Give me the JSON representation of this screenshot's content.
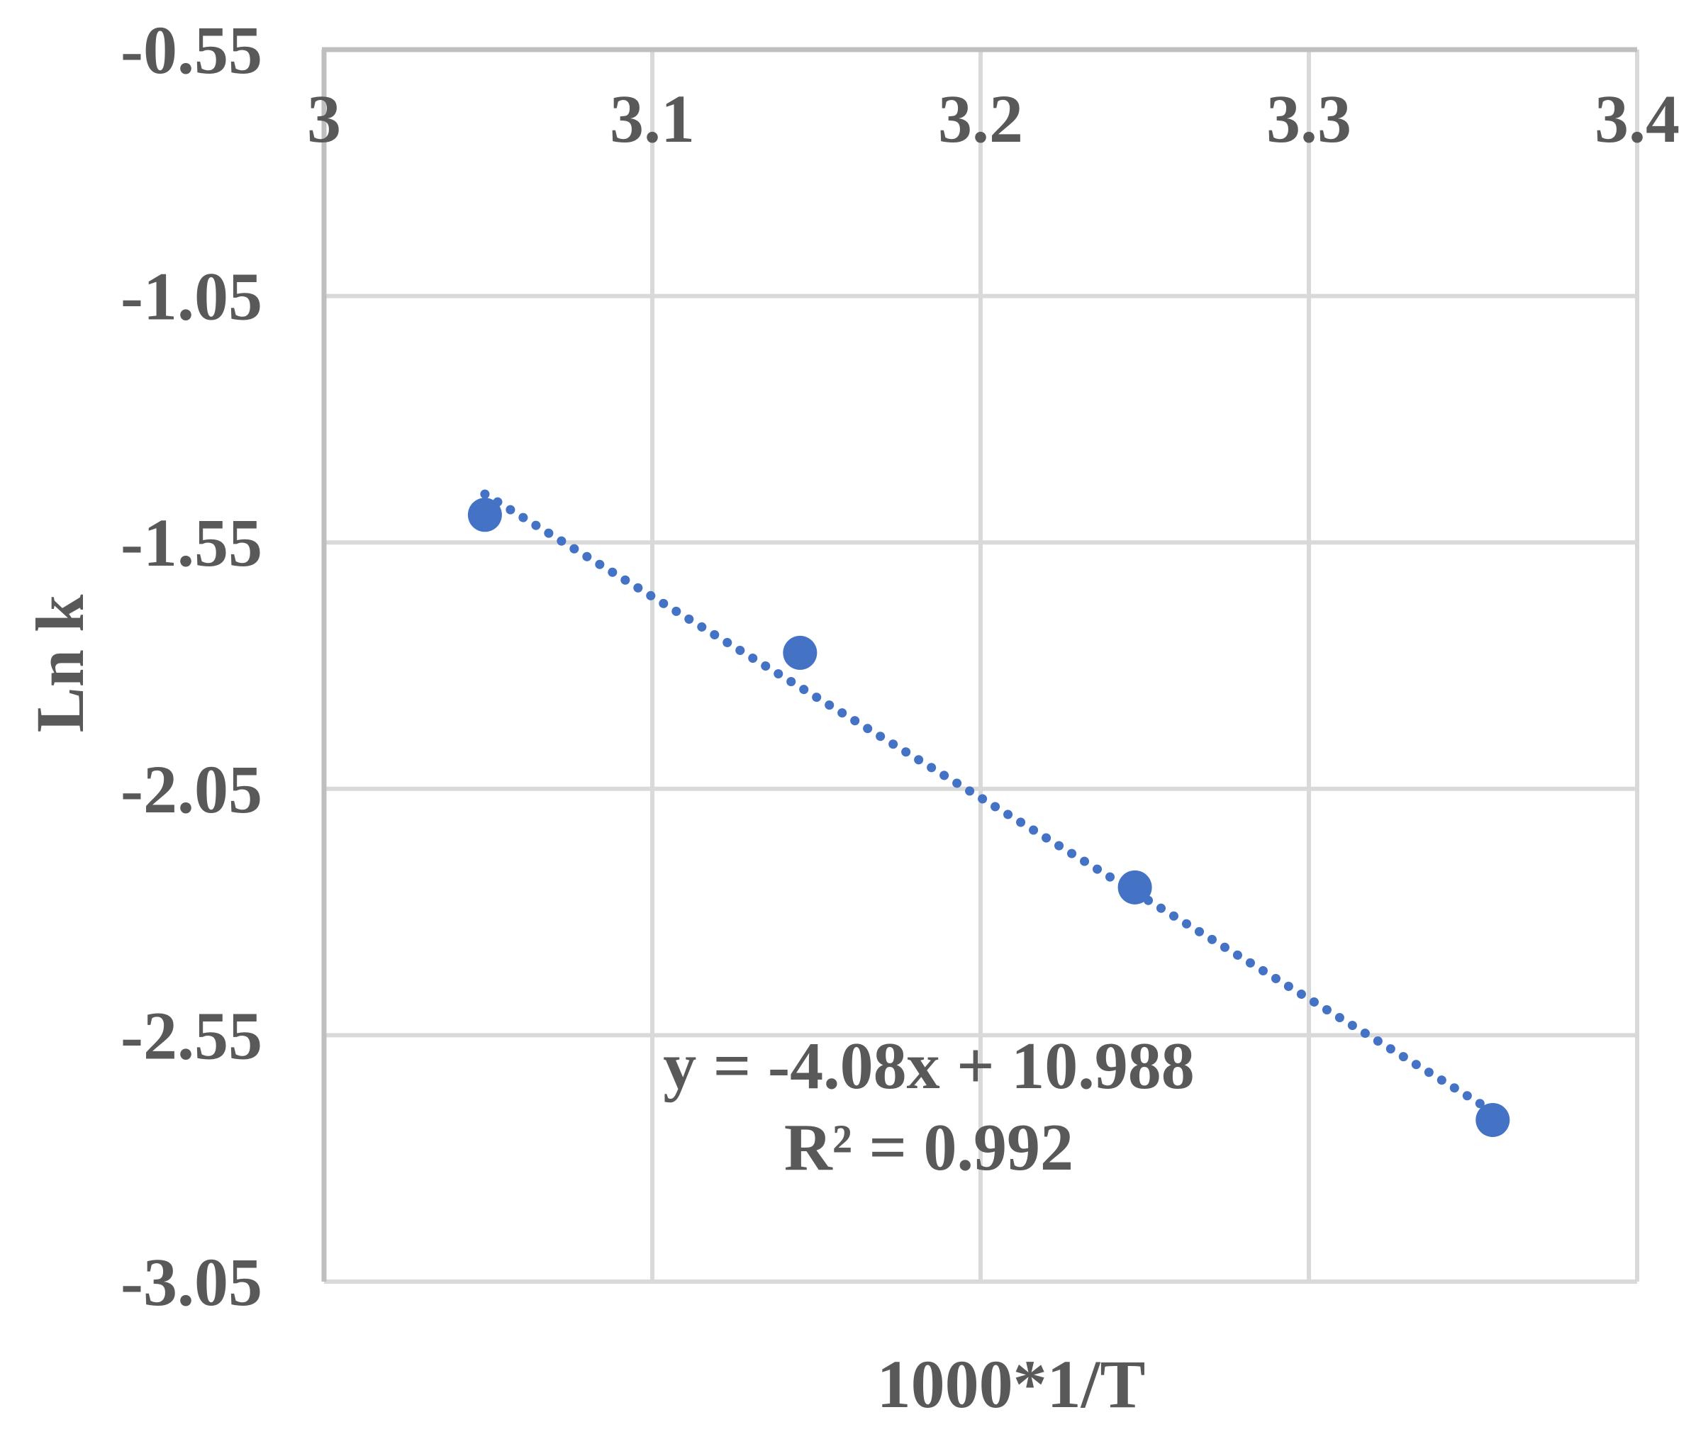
{
  "chart_data": {
    "type": "scatter",
    "title": "",
    "xlabel": "1000*1/T",
    "ylabel": "Ln k",
    "xlim": [
      3,
      3.4
    ],
    "ylim": [
      -3.05,
      -0.55
    ],
    "x_ticks": [
      "3",
      "3.1",
      "3.2",
      "3.3",
      "3.4"
    ],
    "y_ticks": [
      "-0.55",
      "-1.05",
      "-1.55",
      "-2.05",
      "-2.55",
      "-3.05"
    ],
    "x_axis_position": "top",
    "grid": true,
    "legend": "none",
    "series": [
      {
        "name": "Ln k",
        "color": "#4472c4",
        "marker": "circle",
        "points": [
          {
            "x": 3.049,
            "y": -1.494
          },
          {
            "x": 3.145,
            "y": -1.774
          },
          {
            "x": 3.247,
            "y": -2.25
          },
          {
            "x": 3.356,
            "y": -2.722
          }
        ]
      }
    ],
    "trendline": {
      "type": "linear",
      "style": "dotted",
      "color": "#4472c4",
      "slope": -4.08,
      "intercept": 10.988,
      "equation": "y = -4.08x + 10.988",
      "r_squared_label": "R² = 0.992",
      "r_squared": 0.992
    }
  },
  "colors": {
    "text": "#595959",
    "gridline": "#d9d9d9",
    "axis_line": "#bfbfbf",
    "marker": "#4472c4"
  }
}
